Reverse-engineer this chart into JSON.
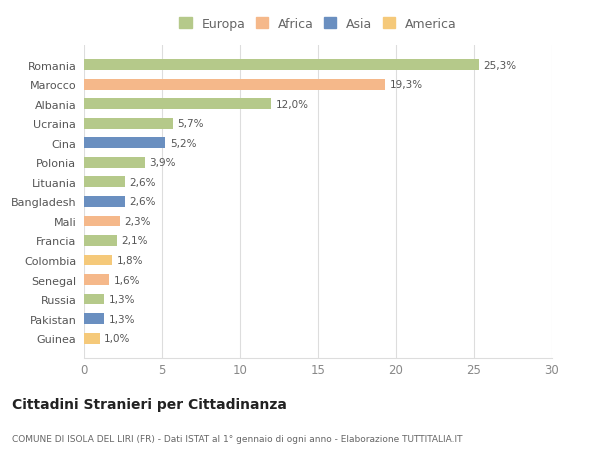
{
  "categories": [
    "Guinea",
    "Pakistan",
    "Russia",
    "Senegal",
    "Colombia",
    "Francia",
    "Mali",
    "Bangladesh",
    "Lituania",
    "Polonia",
    "Cina",
    "Ucraina",
    "Albania",
    "Marocco",
    "Romania"
  ],
  "values": [
    1.0,
    1.3,
    1.3,
    1.6,
    1.8,
    2.1,
    2.3,
    2.6,
    2.6,
    3.9,
    5.2,
    5.7,
    12.0,
    19.3,
    25.3
  ],
  "colors": [
    "#f5c97a",
    "#6a8fc0",
    "#b5c98a",
    "#f5b88a",
    "#f5c97a",
    "#b5c98a",
    "#f5b88a",
    "#6a8fc0",
    "#b5c98a",
    "#b5c98a",
    "#6a8fc0",
    "#b5c98a",
    "#b5c98a",
    "#f5b88a",
    "#b5c98a"
  ],
  "labels": [
    "1,0%",
    "1,3%",
    "1,3%",
    "1,6%",
    "1,8%",
    "2,1%",
    "2,3%",
    "2,6%",
    "2,6%",
    "3,9%",
    "5,2%",
    "5,7%",
    "12,0%",
    "19,3%",
    "25,3%"
  ],
  "legend_labels": [
    "Europa",
    "Africa",
    "Asia",
    "America"
  ],
  "legend_colors": [
    "#b5c98a",
    "#f5b88a",
    "#6a8fc0",
    "#f5c97a"
  ],
  "title": "Cittadini Stranieri per Cittadinanza",
  "subtitle": "COMUNE DI ISOLA DEL LIRI (FR) - Dati ISTAT al 1° gennaio di ogni anno - Elaborazione TUTTITALIA.IT",
  "xlim": [
    0,
    30
  ],
  "xticks": [
    0,
    5,
    10,
    15,
    20,
    25,
    30
  ],
  "background_color": "#ffffff",
  "grid_color": "#dddddd",
  "bar_height": 0.55
}
